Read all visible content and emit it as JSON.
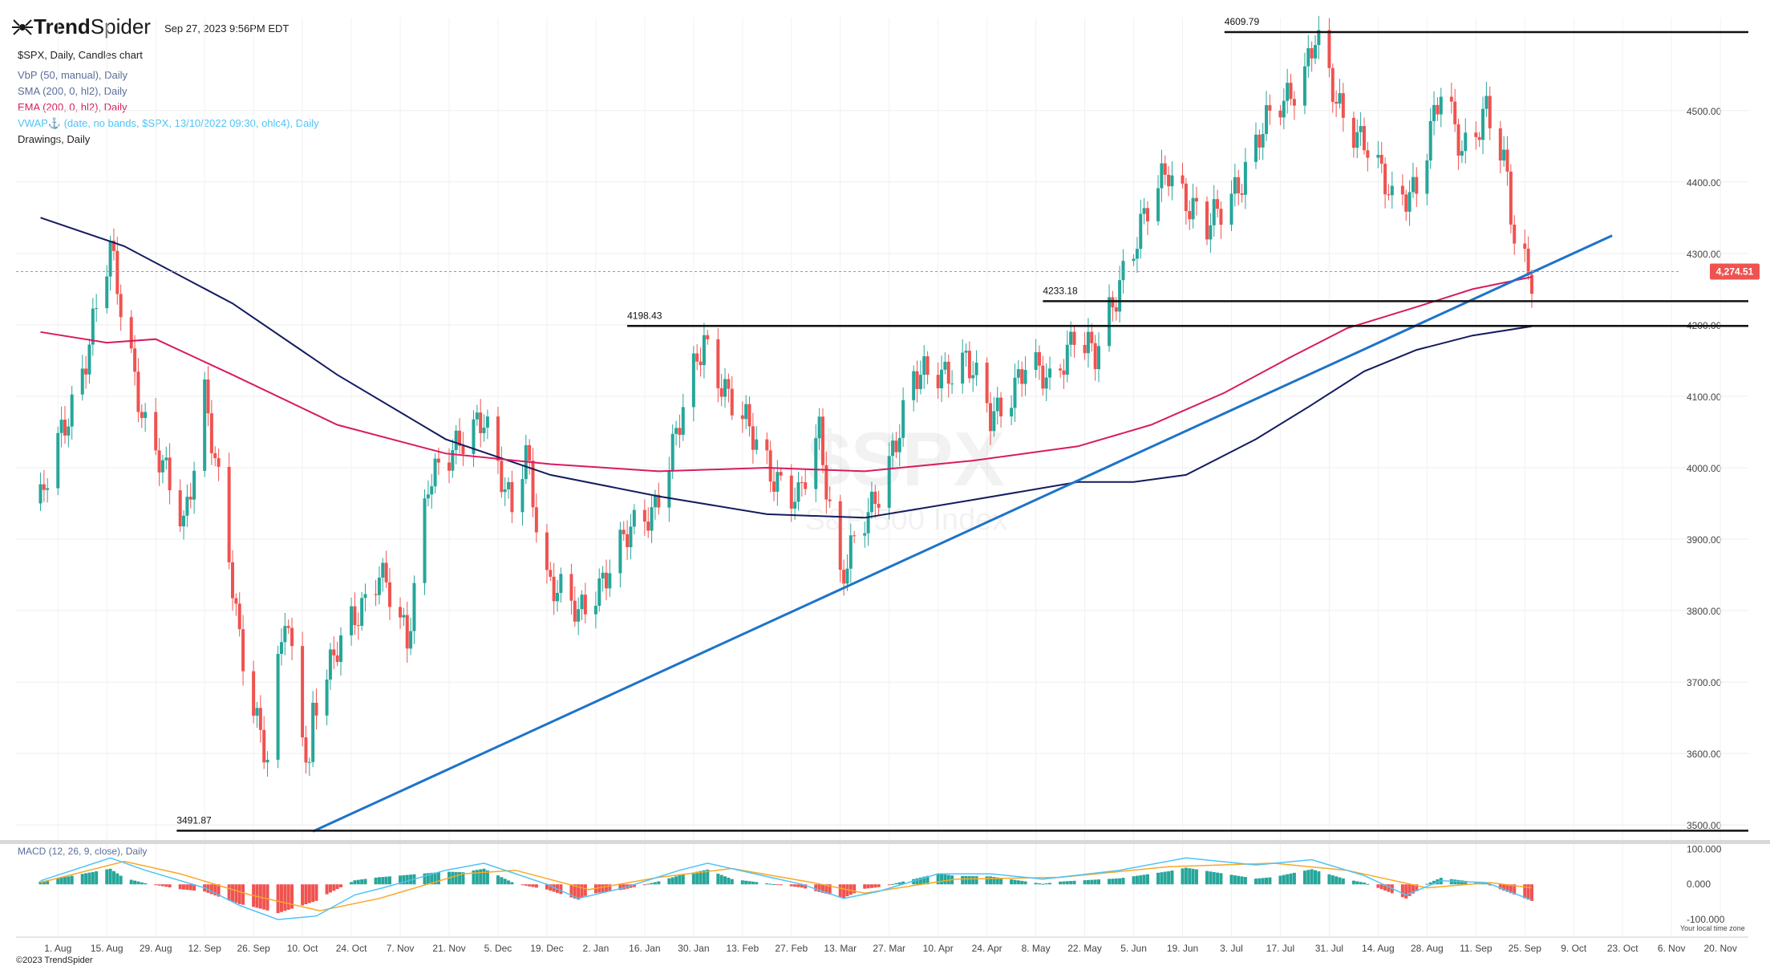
{
  "app": {
    "logo_text_bold": "Trend",
    "logo_text": "Spider",
    "datetime": "Sep 27, 2023 9:56PM EDT",
    "copyright": "©2023 TrendSpider",
    "timezone_label": "Your local time zone"
  },
  "header": {
    "symbol_line": "$SPX, Daily, Candles chart",
    "indicators": [
      {
        "label": "VbP (50, manual), Daily",
        "color": "#5a6e9a"
      },
      {
        "label": "SMA (200, 0, hl2), Daily",
        "color": "#5a6e9a"
      },
      {
        "label": "EMA (200, 0, hl2), Daily",
        "color": "#d81b60"
      },
      {
        "label": "VWAP⚓ (date, no bands, $SPX, 13/10/2022 09:30, ohlc4), Daily",
        "color": "#4fc3f7"
      },
      {
        "label": "Drawings, Daily",
        "color": "#222222"
      }
    ]
  },
  "watermark": {
    "symbol": "$SPX",
    "name": "S&P 500 Index"
  },
  "colors": {
    "up": "#26a69a",
    "down": "#ef5350",
    "sma": "#141b5e",
    "ema": "#d81b60",
    "trendline": "#1e73c8",
    "level": "#111111",
    "price_tag": "#ef5350",
    "macd": "#4fc3f7",
    "signal": "#f9a825"
  },
  "chart_data": {
    "type": "candlestick",
    "price_axis": {
      "ticks": [
        "3500.00",
        "3600.00",
        "3700.00",
        "3800.00",
        "3900.00",
        "4000.00",
        "4100.00",
        "4200.00",
        "4300.00",
        "4400.00",
        "4500.00"
      ],
      "ylim": [
        3480,
        4630
      ]
    },
    "time_axis": {
      "ticks": [
        "1. Aug",
        "15. Aug",
        "29. Aug",
        "12. Sep",
        "26. Sep",
        "10. Oct",
        "24. Oct",
        "7. Nov",
        "21. Nov",
        "5. Dec",
        "19. Dec",
        "2. Jan",
        "16. Jan",
        "30. Jan",
        "13. Feb",
        "27. Feb",
        "13. Mar",
        "27. Mar",
        "10. Apr",
        "24. Apr",
        "8. May",
        "22. May",
        "5. Jun",
        "19. Jun",
        "3. Jul",
        "17. Jul",
        "31. Jul",
        "14. Aug",
        "28. Aug",
        "11. Sep",
        "25. Sep",
        "9. Oct",
        "23. Oct",
        "6. Nov",
        "20. Nov"
      ]
    },
    "last_price": "4,274.51",
    "levels": [
      {
        "label": "4609.79",
        "value": 4609.79,
        "from": "2023-07-01"
      },
      {
        "label": "4233.18",
        "value": 4233.18,
        "from": "2023-05-10"
      },
      {
        "label": "4198.43",
        "value": 4198.43,
        "from": "2023-01-11"
      },
      {
        "label": "3491.87",
        "value": 3491.87,
        "from": "2022-09-04"
      }
    ],
    "trendline": {
      "from": [
        "2022-10-13",
        3491
      ],
      "to": [
        "2023-10-20",
        4325
      ]
    },
    "close_path": [
      [
        "2022-07-27",
        3950
      ],
      [
        "2022-08-08",
        4140
      ],
      [
        "2022-08-16",
        4300
      ],
      [
        "2022-08-26",
        4060
      ],
      [
        "2022-09-06",
        3920
      ],
      [
        "2022-09-12",
        4110
      ],
      [
        "2022-09-22",
        3760
      ],
      [
        "2022-09-30",
        3590
      ],
      [
        "2022-10-05",
        3790
      ],
      [
        "2022-10-12",
        3580
      ],
      [
        "2022-10-13",
        3670
      ],
      [
        "2022-10-21",
        3750
      ],
      [
        "2022-11-01",
        3860
      ],
      [
        "2022-11-09",
        3750
      ],
      [
        "2022-11-15",
        3990
      ],
      [
        "2022-11-23",
        4020
      ],
      [
        "2022-12-01",
        4080
      ],
      [
        "2022-12-09",
        3930
      ],
      [
        "2022-12-13",
        4020
      ],
      [
        "2022-12-19",
        3850
      ],
      [
        "2022-12-28",
        3790
      ],
      [
        "2023-01-09",
        3890
      ],
      [
        "2023-01-18",
        3940
      ],
      [
        "2023-01-26",
        4060
      ],
      [
        "2023-02-02",
        4180
      ],
      [
        "2023-02-10",
        4090
      ],
      [
        "2023-02-21",
        4000
      ],
      [
        "2023-03-01",
        3950
      ],
      [
        "2023-03-07",
        4050
      ],
      [
        "2023-03-13",
        3850
      ],
      [
        "2023-03-22",
        3940
      ],
      [
        "2023-04-03",
        4120
      ],
      [
        "2023-04-18",
        4150
      ],
      [
        "2023-04-25",
        4070
      ],
      [
        "2023-05-05",
        4140
      ],
      [
        "2023-05-12",
        4120
      ],
      [
        "2023-05-19",
        4190
      ],
      [
        "2023-05-25",
        4150
      ],
      [
        "2023-06-02",
        4280
      ],
      [
        "2023-06-15",
        4420
      ],
      [
        "2023-06-26",
        4330
      ],
      [
        "2023-07-06",
        4410
      ],
      [
        "2023-07-12",
        4470
      ],
      [
        "2023-07-24",
        4560
      ],
      [
        "2023-07-27",
        4600
      ],
      [
        "2023-08-02",
        4510
      ],
      [
        "2023-08-10",
        4460
      ],
      [
        "2023-08-18",
        4370
      ],
      [
        "2023-08-25",
        4400
      ],
      [
        "2023-09-01",
        4520
      ],
      [
        "2023-09-07",
        4450
      ],
      [
        "2023-09-14",
        4500
      ],
      [
        "2023-09-20",
        4400
      ],
      [
        "2023-09-22",
        4320
      ],
      [
        "2023-09-27",
        4274
      ]
    ],
    "sma_200": [
      [
        "2022-07-27",
        4350
      ],
      [
        "2022-08-20",
        4310
      ],
      [
        "2022-09-20",
        4230
      ],
      [
        "2022-10-20",
        4130
      ],
      [
        "2022-11-20",
        4040
      ],
      [
        "2022-12-20",
        3990
      ],
      [
        "2023-01-20",
        3960
      ],
      [
        "2023-02-20",
        3935
      ],
      [
        "2023-03-20",
        3930
      ],
      [
        "2023-04-20",
        3955
      ],
      [
        "2023-05-20",
        3980
      ],
      [
        "2023-06-05",
        3980
      ],
      [
        "2023-06-20",
        3990
      ],
      [
        "2023-07-10",
        4040
      ],
      [
        "2023-07-25",
        4085
      ],
      [
        "2023-08-10",
        4135
      ],
      [
        "2023-08-25",
        4165
      ],
      [
        "2023-09-10",
        4185
      ],
      [
        "2023-09-27",
        4198
      ]
    ],
    "ema_200": [
      [
        "2022-07-27",
        4190
      ],
      [
        "2022-08-15",
        4175
      ],
      [
        "2022-08-29",
        4180
      ],
      [
        "2022-09-20",
        4130
      ],
      [
        "2022-10-20",
        4060
      ],
      [
        "2022-11-20",
        4020
      ],
      [
        "2022-12-20",
        4005
      ],
      [
        "2023-01-20",
        3995
      ],
      [
        "2023-02-20",
        4000
      ],
      [
        "2023-03-20",
        3995
      ],
      [
        "2023-04-20",
        4010
      ],
      [
        "2023-05-20",
        4030
      ],
      [
        "2023-06-10",
        4060
      ],
      [
        "2023-07-01",
        4105
      ],
      [
        "2023-07-20",
        4155
      ],
      [
        "2023-08-05",
        4195
      ],
      [
        "2023-08-25",
        4225
      ],
      [
        "2023-09-10",
        4250
      ],
      [
        "2023-09-27",
        4267
      ]
    ],
    "macd": {
      "label": "MACD (12, 26, 9, close), Daily",
      "ticks": [
        "100.000",
        "0.000",
        "-100.000"
      ],
      "ylim": [
        -150,
        110
      ],
      "macd_path": [
        [
          "2022-07-27",
          10
        ],
        [
          "2022-08-16",
          75
        ],
        [
          "2022-08-26",
          40
        ],
        [
          "2022-09-12",
          -10
        ],
        [
          "2022-09-22",
          -60
        ],
        [
          "2022-10-03",
          -100
        ],
        [
          "2022-10-14",
          -90
        ],
        [
          "2022-10-25",
          -30
        ],
        [
          "2022-11-02",
          -10
        ],
        [
          "2022-11-20",
          40
        ],
        [
          "2022-12-01",
          60
        ],
        [
          "2022-12-19",
          0
        ],
        [
          "2022-12-28",
          -40
        ],
        [
          "2023-01-10",
          -10
        ],
        [
          "2023-01-26",
          40
        ],
        [
          "2023-02-03",
          60
        ],
        [
          "2023-02-21",
          20
        ],
        [
          "2023-03-02",
          0
        ],
        [
          "2023-03-14",
          -40
        ],
        [
          "2023-03-24",
          -20
        ],
        [
          "2023-04-10",
          30
        ],
        [
          "2023-04-25",
          30
        ],
        [
          "2023-05-10",
          15
        ],
        [
          "2023-06-01",
          40
        ],
        [
          "2023-06-20",
          75
        ],
        [
          "2023-07-10",
          55
        ],
        [
          "2023-07-26",
          70
        ],
        [
          "2023-08-10",
          25
        ],
        [
          "2023-08-22",
          -30
        ],
        [
          "2023-09-01",
          10
        ],
        [
          "2023-09-14",
          5
        ],
        [
          "2023-09-27",
          -45
        ]
      ],
      "signal_path": [
        [
          "2022-07-27",
          5
        ],
        [
          "2022-08-20",
          65
        ],
        [
          "2022-09-05",
          30
        ],
        [
          "2022-09-25",
          -30
        ],
        [
          "2022-10-15",
          -75
        ],
        [
          "2022-11-01",
          -40
        ],
        [
          "2022-11-25",
          30
        ],
        [
          "2022-12-10",
          40
        ],
        [
          "2022-12-31",
          -15
        ],
        [
          "2023-01-20",
          20
        ],
        [
          "2023-02-10",
          45
        ],
        [
          "2023-03-05",
          5
        ],
        [
          "2023-03-20",
          -25
        ],
        [
          "2023-04-15",
          15
        ],
        [
          "2023-05-15",
          20
        ],
        [
          "2023-06-15",
          50
        ],
        [
          "2023-07-15",
          60
        ],
        [
          "2023-08-05",
          40
        ],
        [
          "2023-08-28",
          -10
        ],
        [
          "2023-09-15",
          5
        ],
        [
          "2023-09-27",
          -10
        ]
      ]
    }
  }
}
